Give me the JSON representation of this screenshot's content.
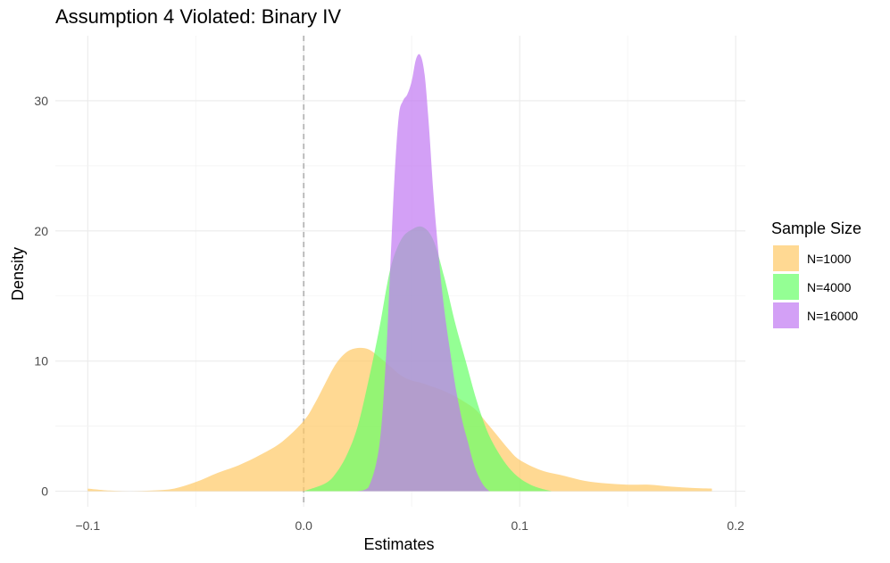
{
  "chart_data": {
    "type": "area",
    "title": "Assumption 4 Violated: Binary IV",
    "xlabel": "Estimates",
    "ylabel": "Density",
    "xlim": [
      -0.115,
      0.2045
    ],
    "ylim": [
      -1.2,
      35.0
    ],
    "x_ticks": [
      -0.1,
      0.0,
      0.1,
      0.2
    ],
    "x_tick_labels": [
      "−0.1",
      "0.0",
      "0.1",
      "0.2"
    ],
    "y_ticks": [
      0,
      10,
      20,
      30
    ],
    "y_tick_labels": [
      "0",
      "10",
      "20",
      "30"
    ],
    "reference_line": 0.0,
    "grid": true,
    "legend": {
      "title": "Sample Size",
      "position": "right"
    },
    "series": [
      {
        "name": "N=1000",
        "color": "#FFC965",
        "x": [
          -0.1,
          -0.09,
          -0.08,
          -0.07,
          -0.06,
          -0.05,
          -0.04,
          -0.03,
          -0.02,
          -0.01,
          0.0,
          0.005,
          0.01,
          0.015,
          0.02,
          0.025,
          0.03,
          0.035,
          0.04,
          0.045,
          0.05,
          0.055,
          0.06,
          0.065,
          0.07,
          0.075,
          0.08,
          0.085,
          0.09,
          0.095,
          0.1,
          0.11,
          0.12,
          0.13,
          0.14,
          0.15,
          0.16,
          0.17,
          0.18,
          0.189
        ],
        "y": [
          0.2,
          0.05,
          0.0,
          0.05,
          0.2,
          0.7,
          1.4,
          2.0,
          2.8,
          3.8,
          5.4,
          6.7,
          8.3,
          9.8,
          10.7,
          11.0,
          10.9,
          10.3,
          9.6,
          8.9,
          8.5,
          8.3,
          8.0,
          7.7,
          7.3,
          6.8,
          6.2,
          5.2,
          4.2,
          3.2,
          2.4,
          1.6,
          1.2,
          0.8,
          0.6,
          0.5,
          0.5,
          0.35,
          0.25,
          0.2
        ]
      },
      {
        "name": "N=4000",
        "color": "#66FF66",
        "x": [
          0.0,
          0.01,
          0.015,
          0.02,
          0.025,
          0.03,
          0.035,
          0.04,
          0.045,
          0.05,
          0.055,
          0.06,
          0.065,
          0.07,
          0.075,
          0.08,
          0.085,
          0.09,
          0.095,
          0.1,
          0.105,
          0.11,
          0.115
        ],
        "y": [
          0.0,
          0.6,
          1.4,
          2.8,
          5.0,
          8.5,
          12.5,
          17.0,
          19.3,
          20.1,
          20.3,
          19.3,
          16.5,
          13.0,
          10.0,
          7.0,
          4.6,
          3.0,
          1.8,
          1.0,
          0.5,
          0.2,
          0.0
        ]
      },
      {
        "name": "N=16000",
        "color": "#C077F2",
        "x": [
          0.025,
          0.03,
          0.035,
          0.038,
          0.04,
          0.042,
          0.044,
          0.046,
          0.048,
          0.05,
          0.052,
          0.054,
          0.056,
          0.058,
          0.06,
          0.062,
          0.064,
          0.066,
          0.068,
          0.07,
          0.072,
          0.074,
          0.076,
          0.078,
          0.08,
          0.082,
          0.084,
          0.086
        ],
        "y": [
          0.0,
          0.3,
          3.5,
          10.0,
          17.0,
          24.0,
          28.8,
          30.0,
          30.5,
          31.5,
          33.2,
          33.5,
          32.0,
          28.0,
          23.0,
          19.0,
          15.5,
          12.8,
          10.5,
          8.3,
          6.5,
          5.0,
          3.8,
          2.5,
          1.5,
          0.8,
          0.3,
          0.0
        ]
      }
    ]
  }
}
